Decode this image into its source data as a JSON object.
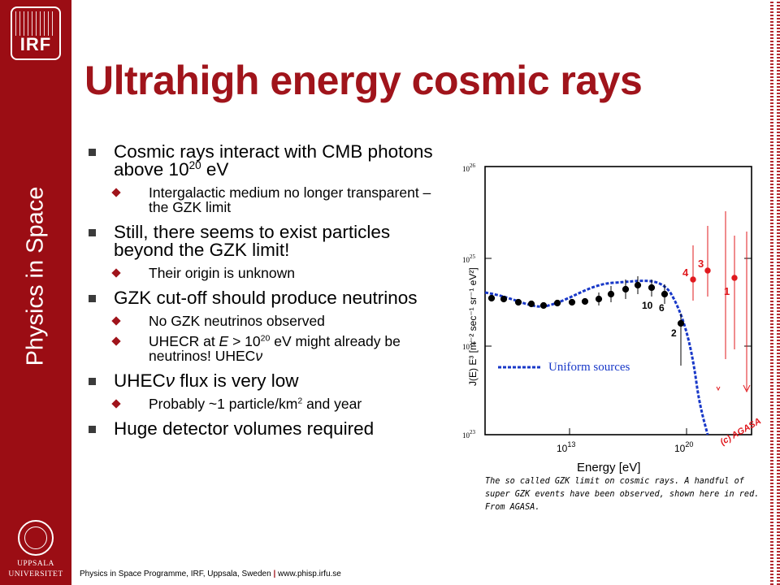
{
  "sidebar": {
    "logo_text": "IRF",
    "vertical_label": "Physics in Space",
    "university": [
      "UPPSALA",
      "UNIVERSITET"
    ]
  },
  "title": "Ultrahigh energy cosmic rays",
  "bullets": [
    {
      "pre": "Cosmic rays interact with CMB photons above 10",
      "sup": "20",
      "post": " eV",
      "sub": [
        {
          "text": "Intergalactic medium no longer transparent – the GZK limit"
        }
      ]
    },
    {
      "text": "Still, there seems to exist particles beyond the GZK limit!",
      "sub": [
        {
          "text": "Their origin is unknown"
        }
      ]
    },
    {
      "text": "GZK cut-off should produce neutrinos",
      "sub": [
        {
          "text": "No GZK neutrinos observed"
        },
        {
          "a": "UHECR at ",
          "b": "E",
          "c": " > 10",
          "d": "20",
          "e": " eV might already be neutrinos! UHEC",
          "f": "ν"
        }
      ]
    },
    {
      "a": "UHEC",
      "b": "ν",
      "c": " flux is very low",
      "sub": [
        {
          "a": "Probably ~1 particle/km",
          "b": "2",
          "c": " and year"
        }
      ]
    },
    {
      "text": "Huge detector volumes required"
    }
  ],
  "chart": {
    "ylabel": "J(E) E³ [m⁻² sec⁻¹ sr⁻¹ eV²]",
    "xlabel": "Energy [eV]",
    "ytick_base": "10",
    "yticks": [
      "26",
      "25",
      "24",
      "23"
    ],
    "xtick_base": "10",
    "xticks": [
      "13",
      "20"
    ],
    "legend": "Uniform sources",
    "event_labels": [
      "4",
      "3",
      "1",
      "10",
      "6",
      "2"
    ],
    "watermark": "(c) AGASA",
    "colors": {
      "data": "#000000",
      "events": "#e0191e",
      "model": "#1838c8"
    }
  },
  "caption": "The so called GZK limit on cosmic rays. A handful of super GZK events have been observed, shown here in red. From AGASA.",
  "footer": {
    "left": "Physics in Space Programme, IRF, Uppsala, Sweden",
    "sep": "|",
    "right": "www.phisp.irfu.se"
  }
}
